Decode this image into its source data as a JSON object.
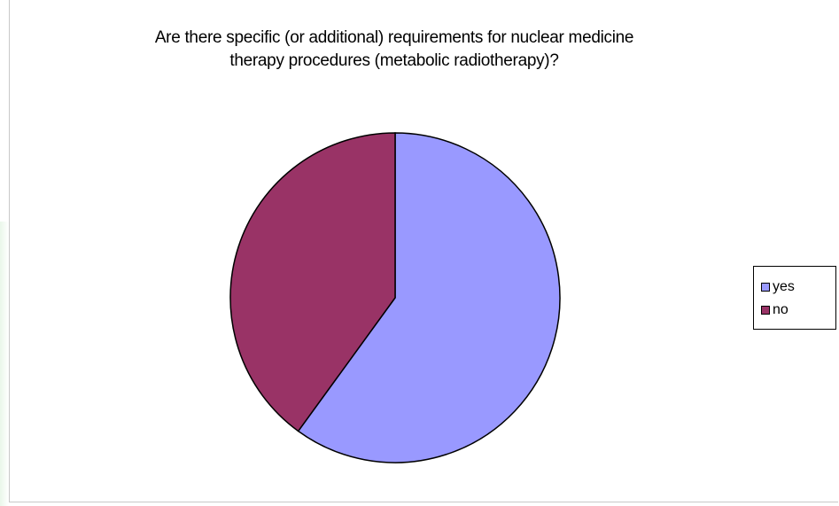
{
  "chart_data": {
    "type": "pie",
    "title": "Are there specific (or additional) requirements for nuclear medicine therapy procedures (metabolic radiotherapy)?",
    "categories": [
      "yes",
      "no"
    ],
    "values": [
      60,
      40
    ],
    "colors": [
      "#9999ff",
      "#993366"
    ],
    "legend": "right",
    "start_angle": "top",
    "direction": "clockwise"
  }
}
